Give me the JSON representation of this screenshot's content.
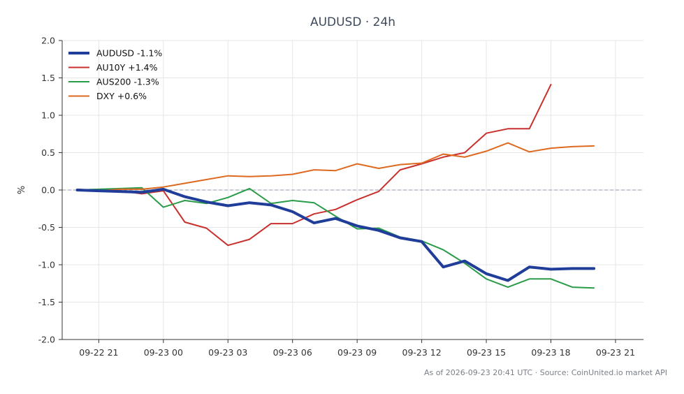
{
  "footer": "As of 2026-09-23 20:41 UTC · Source: CoinUnited.io market API",
  "chart_data": {
    "type": "line",
    "title": "AUDUSD · 24h",
    "ylabel": "%",
    "ylim": [
      -2.0,
      2.0
    ],
    "yticks": [
      2.0,
      1.5,
      1.0,
      0.5,
      0.0,
      -0.5,
      -1.0,
      -1.5,
      -2.0
    ],
    "xlim": [
      -1.7,
      25.3
    ],
    "xticks": [
      {
        "value": 0,
        "label": "09-22 21"
      },
      {
        "value": 3,
        "label": "09-23 00"
      },
      {
        "value": 6,
        "label": "09-23 03"
      },
      {
        "value": 9,
        "label": "09-23 06"
      },
      {
        "value": 12,
        "label": "09-23 09"
      },
      {
        "value": 15,
        "label": "09-23 12"
      },
      {
        "value": 18,
        "label": "09-23 15"
      },
      {
        "value": 21,
        "label": "09-23 18"
      },
      {
        "value": 24,
        "label": "09-23 21"
      }
    ],
    "x_unit": "hours since 09-22 21:00",
    "zero_line": true,
    "grid": true,
    "legend_position": "top-left",
    "series": [
      {
        "name": "AUDUSD -1.1%",
        "color": "#1f3d99",
        "width": 4,
        "x": [
          -1,
          0,
          1,
          2,
          3,
          4,
          5,
          6,
          7,
          8,
          9,
          10,
          11,
          12,
          13,
          14,
          15,
          16,
          17,
          18,
          19,
          20,
          21,
          22,
          23
        ],
        "y": [
          0.0,
          -0.01,
          -0.02,
          -0.03,
          0.01,
          -0.09,
          -0.16,
          -0.21,
          -0.17,
          -0.2,
          -0.29,
          -0.44,
          -0.38,
          -0.48,
          -0.54,
          -0.64,
          -0.69,
          -1.03,
          -0.95,
          -1.12,
          -1.21,
          -1.03,
          -1.06,
          -1.05,
          -1.05
        ]
      },
      {
        "name": "AU10Y +1.4%",
        "color": "#c8302e",
        "width": 2,
        "x": [
          -1,
          0,
          1,
          2,
          3,
          4,
          5,
          6,
          7,
          8,
          9,
          10,
          11,
          12,
          13,
          14,
          15,
          16,
          17,
          18,
          19,
          20,
          21
        ],
        "y": [
          0.01,
          -0.01,
          -0.01,
          -0.05,
          -0.01,
          -0.43,
          -0.51,
          -0.74,
          -0.66,
          -0.45,
          -0.45,
          -0.32,
          -0.26,
          -0.13,
          -0.02,
          0.27,
          0.35,
          0.44,
          0.5,
          0.76,
          0.82,
          0.82,
          1.41
        ]
      },
      {
        "name": "AUS200 -1.3%",
        "color": "#2a9c49",
        "width": 2,
        "x": [
          -1,
          0,
          1,
          2,
          3,
          4,
          5,
          6,
          7,
          8,
          9,
          10,
          11,
          12,
          13,
          14,
          15,
          16,
          17,
          18,
          19,
          20,
          21,
          22,
          23
        ],
        "y": [
          0.0,
          0.01,
          0.02,
          0.03,
          -0.23,
          -0.14,
          -0.18,
          -0.1,
          0.02,
          -0.18,
          -0.14,
          -0.17,
          -0.35,
          -0.52,
          -0.51,
          -0.63,
          -0.68,
          -0.8,
          -0.98,
          -1.19,
          -1.3,
          -1.19,
          -1.19,
          -1.3,
          -1.31
        ]
      },
      {
        "name": "DXY +0.6%",
        "color": "#de6a21",
        "width": 2,
        "x": [
          -1,
          0,
          1,
          2,
          3,
          4,
          5,
          6,
          7,
          8,
          9,
          10,
          11,
          12,
          13,
          14,
          15,
          16,
          17,
          18,
          19,
          20,
          21,
          22,
          23
        ],
        "y": [
          0.0,
          -0.01,
          0.01,
          0.01,
          0.04,
          0.09,
          0.14,
          0.19,
          0.18,
          0.19,
          0.21,
          0.27,
          0.26,
          0.35,
          0.29,
          0.34,
          0.36,
          0.48,
          0.44,
          0.52,
          0.63,
          0.51,
          0.56,
          0.58,
          0.59
        ]
      }
    ]
  }
}
